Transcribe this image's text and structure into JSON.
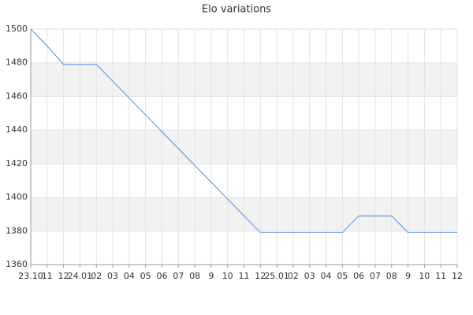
{
  "chart_data": {
    "type": "line",
    "title": "Elo variations",
    "categories": [
      "23.10",
      "11",
      "12",
      "24.01",
      "02",
      "03",
      "04",
      "05",
      "06",
      "07",
      "08",
      "9",
      "10",
      "11",
      "12",
      "25.01",
      "02",
      "03",
      "04",
      "05",
      "06",
      "07",
      "08",
      "9",
      "10",
      "11",
      "12"
    ],
    "series": [
      {
        "name": "Elo",
        "color": "#4a8ee0",
        "values": [
          1500,
          1490,
          1479,
          1479,
          1479,
          1469,
          1459,
          1449,
          1439,
          1429,
          1419,
          1409,
          1399,
          1389,
          1379,
          1379,
          1379,
          1379,
          1379,
          1379,
          1389,
          1389,
          1389,
          1379,
          1379,
          1379,
          1379
        ]
      }
    ],
    "ylim": [
      1360,
      1500
    ],
    "yticks": [
      1360,
      1380,
      1400,
      1420,
      1440,
      1460,
      1480,
      1500
    ],
    "grid": true,
    "alternate_bands": true
  }
}
